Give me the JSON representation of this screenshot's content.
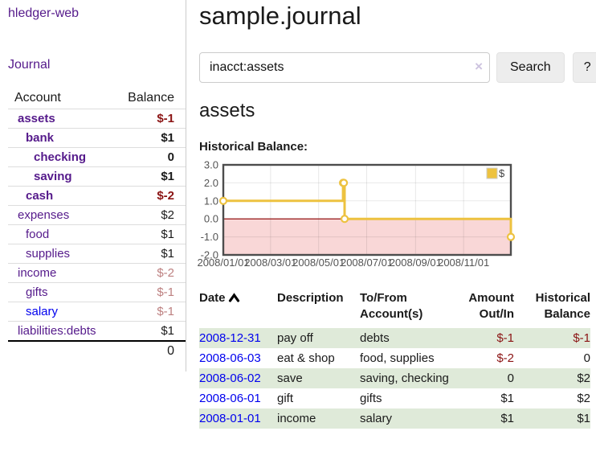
{
  "app": {
    "title": "hledger-web"
  },
  "colors": {
    "link_visited": "#551a8b",
    "link": "#0000ee",
    "negative_strong": "#8b1414",
    "negative_soft": "#bd8080",
    "row_shade_green": "#dfead9"
  },
  "sidebar": {
    "journal_link": "Journal",
    "table": {
      "col_account": "Account",
      "col_balance": "Balance",
      "accounts": [
        {
          "name": "assets",
          "indent": 0,
          "balance": "$-1",
          "bold": true,
          "negative": "strong"
        },
        {
          "name": "bank",
          "indent": 1,
          "balance": "$1",
          "bold": true,
          "negative": null
        },
        {
          "name": "checking",
          "indent": 2,
          "balance": "0",
          "bold": true,
          "negative": null
        },
        {
          "name": "saving",
          "indent": 2,
          "balance": "$1",
          "bold": true,
          "negative": null
        },
        {
          "name": "cash",
          "indent": 1,
          "balance": "$-2",
          "bold": true,
          "negative": "strong"
        },
        {
          "name": "expenses",
          "indent": 0,
          "balance": "$2",
          "bold": false,
          "negative": null
        },
        {
          "name": "food",
          "indent": 1,
          "balance": "$1",
          "bold": false,
          "negative": null
        },
        {
          "name": "supplies",
          "indent": 1,
          "balance": "$1",
          "bold": false,
          "negative": null
        },
        {
          "name": "income",
          "indent": 0,
          "balance": "$-2",
          "bold": false,
          "negative": "soft"
        },
        {
          "name": "gifts",
          "indent": 1,
          "balance": "$-1",
          "bold": false,
          "negative": "soft"
        },
        {
          "name": "salary",
          "indent": 1,
          "balance": "$-1",
          "bold": false,
          "negative": "soft",
          "unvisited": true
        },
        {
          "name": "liabilities:debts",
          "indent": 0,
          "balance": "$1",
          "bold": false,
          "negative": null
        }
      ],
      "total": "0"
    }
  },
  "main": {
    "page_title": "sample.journal",
    "search": {
      "value": "inacct:assets",
      "clear_icon": "×",
      "button": "Search",
      "help_button": "?"
    },
    "account_heading": "assets",
    "chart_label": "Historical Balance:"
  },
  "chart_data": {
    "type": "line",
    "title": "Historical Balance",
    "step": true,
    "xlim": [
      "2008-01-01",
      "2008-12-31"
    ],
    "ylim": [
      -2.0,
      3.0
    ],
    "y_ticks": [
      "3.0",
      "2.0",
      "1.0",
      "0.0",
      "-1.0",
      "-2.0"
    ],
    "x_ticks": [
      "2008/01/01",
      "2008/03/01",
      "2008/05/01",
      "2008/07/01",
      "2008/09/01",
      "2008/11/01"
    ],
    "series": [
      {
        "name": "$",
        "color": "#edc240",
        "points": [
          {
            "x": "2008-01-01",
            "y": 1
          },
          {
            "x": "2008-06-01",
            "y": 2
          },
          {
            "x": "2008-06-02",
            "y": 2
          },
          {
            "x": "2008-06-03",
            "y": 0
          },
          {
            "x": "2008-12-31",
            "y": -1
          }
        ]
      }
    ],
    "legend": {
      "label": "$",
      "position": "top-right"
    },
    "grid": true,
    "negative_region_color": "#f9d7d7",
    "zero_line_color": "#8b0000",
    "border_color": "#4d4d4d",
    "tick_text_color": "#545454"
  },
  "register": {
    "headers": {
      "date": "Date",
      "description": "Description",
      "account": "To/From Account(s)",
      "amount": "Amount Out/In",
      "balance": "Historical Balance"
    },
    "rows": [
      {
        "date": "2008-12-31",
        "description": "pay off",
        "accounts": "debts",
        "amount": "$-1",
        "amount_neg": true,
        "balance": "$-1",
        "balance_neg": true,
        "shaded": true
      },
      {
        "date": "2008-06-03",
        "description": "eat & shop",
        "accounts": "food, supplies",
        "amount": "$-2",
        "amount_neg": true,
        "balance": "0",
        "balance_neg": false,
        "shaded": false
      },
      {
        "date": "2008-06-02",
        "description": "save",
        "accounts": "saving, checking",
        "amount": "0",
        "amount_neg": false,
        "balance": "$2",
        "balance_neg": false,
        "shaded": true
      },
      {
        "date": "2008-06-01",
        "description": "gift",
        "accounts": "gifts",
        "amount": "$1",
        "amount_neg": false,
        "balance": "$2",
        "balance_neg": false,
        "shaded": false
      },
      {
        "date": "2008-01-01",
        "description": "income",
        "accounts": "salary",
        "amount": "$1",
        "amount_neg": false,
        "balance": "$1",
        "balance_neg": false,
        "shaded": true
      }
    ]
  }
}
